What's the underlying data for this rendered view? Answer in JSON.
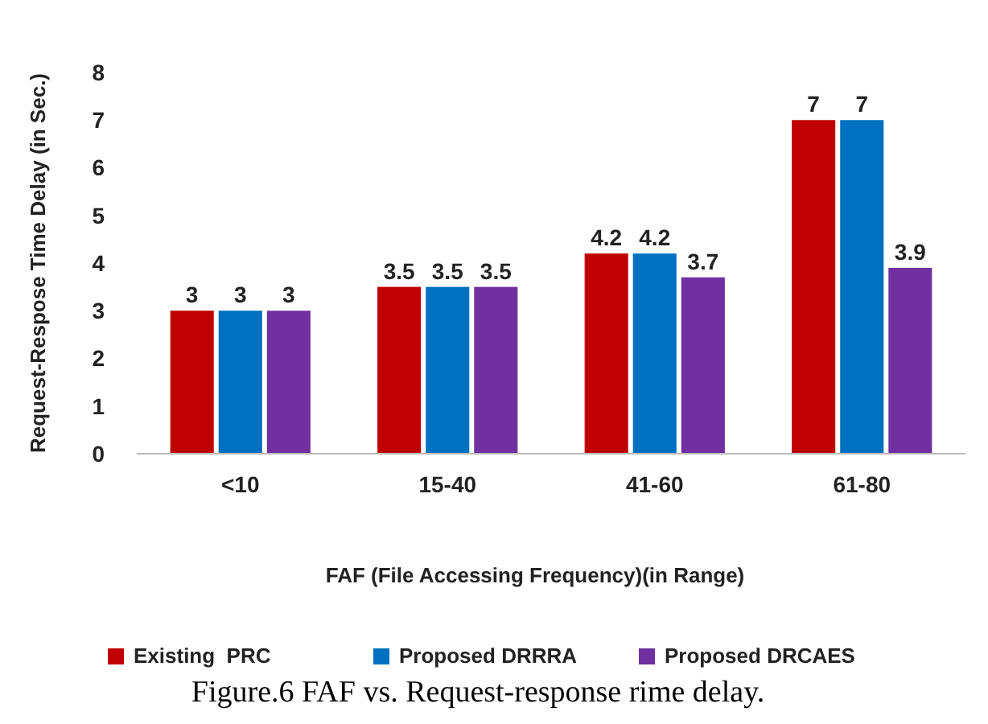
{
  "chart_data": {
    "type": "bar",
    "ylabel": "Request-Respose Time Delay (in Sec.)",
    "xlabel": "FAF (File Accessing Frequency)(in Range)",
    "categories": [
      "<10",
      "15-40",
      "41-60",
      "61-80"
    ],
    "series": [
      {
        "name": "Existing  PRC",
        "color": "#c00000",
        "values": [
          3,
          3.5,
          4.2,
          7
        ]
      },
      {
        "name": "Proposed DRRRA",
        "color": "#0070c0",
        "values": [
          3,
          3.5,
          4.2,
          7
        ]
      },
      {
        "name": "Proposed DRCAES",
        "color": "#7030a0",
        "values": [
          3,
          3.5,
          3.7,
          3.9
        ]
      }
    ],
    "ylim": [
      0,
      8
    ],
    "yticks": [
      0,
      1,
      2,
      3,
      4,
      5,
      6,
      7,
      8
    ],
    "data_labels": true,
    "legend": "bottom",
    "grid": false,
    "annotations": [
      "Figure.6 FAF vs. Request-response rime delay."
    ]
  }
}
